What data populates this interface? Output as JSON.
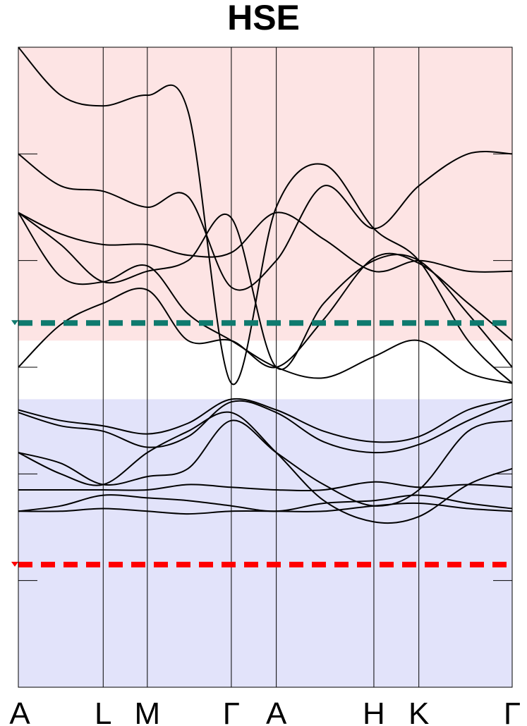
{
  "chart_data": {
    "type": "line",
    "title": "HSE",
    "xlabel": "",
    "ylabel": "",
    "grid": false,
    "x_ticks": [
      "A",
      "L",
      "M",
      "Γ",
      "A",
      "H",
      "K",
      "Γ"
    ],
    "x_tick_positions": [
      0,
      1.0,
      1.52,
      2.51,
      3.04,
      4.19,
      4.72,
      5.82
    ],
    "xlim": [
      0,
      5.82
    ],
    "ylim": [
      -6.0,
      6.0
    ],
    "y_ticks": [
      -4,
      -2,
      0,
      2,
      4
    ],
    "regions": [
      {
        "name": "conduction",
        "from": 0.5,
        "to": 6.0,
        "color": "#fde4e4"
      },
      {
        "name": "valence",
        "from": -6.0,
        "to": -0.6,
        "color": "#e2e3fa"
      }
    ],
    "reference_lines": [
      {
        "y": 0.83,
        "color": "#0f7a6e",
        "style": "dashed"
      },
      {
        "y": -3.7,
        "color": "#ff0000",
        "style": "dashed"
      }
    ],
    "series": [
      {
        "values": [
          [
            0,
            -0.8
          ],
          [
            0.5,
            -1.0
          ],
          [
            1.0,
            -1.1
          ],
          [
            1.52,
            -1.25
          ],
          [
            2.0,
            -1.05
          ],
          [
            2.51,
            -0.6
          ],
          [
            3.04,
            -0.8
          ],
          [
            3.6,
            -1.2
          ],
          [
            4.19,
            -1.4
          ],
          [
            4.72,
            -1.3
          ],
          [
            5.3,
            -0.8
          ],
          [
            5.82,
            -0.6
          ]
        ]
      },
      {
        "values": [
          [
            0,
            -0.85
          ],
          [
            0.5,
            -1.1
          ],
          [
            1.0,
            -1.2
          ],
          [
            1.52,
            -1.5
          ],
          [
            2.0,
            -1.3
          ],
          [
            2.51,
            -0.65
          ],
          [
            3.04,
            -0.85
          ],
          [
            3.6,
            -1.4
          ],
          [
            4.19,
            -1.6
          ],
          [
            4.72,
            -1.45
          ],
          [
            5.3,
            -1.0
          ],
          [
            5.82,
            -0.65
          ]
        ]
      },
      {
        "values": [
          [
            0,
            -1.6
          ],
          [
            0.5,
            -1.8
          ],
          [
            1.0,
            -2.2
          ],
          [
            1.52,
            -2.05
          ],
          [
            2.0,
            -1.9
          ],
          [
            2.51,
            -1.0
          ],
          [
            3.04,
            -1.6
          ],
          [
            3.6,
            -2.2
          ],
          [
            4.19,
            -2.6
          ],
          [
            4.72,
            -2.3
          ],
          [
            5.3,
            -1.2
          ],
          [
            5.82,
            -1.0
          ]
        ]
      },
      {
        "values": [
          [
            0,
            -1.6
          ],
          [
            0.5,
            -2.0
          ],
          [
            1.0,
            -2.2
          ],
          [
            1.52,
            -1.6
          ],
          [
            2.0,
            -1.2
          ],
          [
            2.51,
            -0.85
          ],
          [
            3.04,
            -1.6
          ],
          [
            3.6,
            -2.5
          ],
          [
            4.19,
            -2.9
          ],
          [
            4.72,
            -2.8
          ],
          [
            5.3,
            -2.2
          ],
          [
            5.82,
            -1.9
          ]
        ]
      },
      {
        "values": [
          [
            0,
            -2.3
          ],
          [
            0.5,
            -2.3
          ],
          [
            1.0,
            -2.3
          ],
          [
            1.52,
            -2.3
          ],
          [
            2.0,
            -2.2
          ],
          [
            2.51,
            -2.25
          ],
          [
            3.04,
            -2.3
          ],
          [
            3.6,
            -2.3
          ],
          [
            4.19,
            -2.15
          ],
          [
            4.72,
            -2.25
          ],
          [
            5.3,
            -2.2
          ],
          [
            5.82,
            -2.25
          ]
        ]
      },
      {
        "values": [
          [
            0,
            -2.7
          ],
          [
            0.5,
            -2.6
          ],
          [
            1.0,
            -2.4
          ],
          [
            1.52,
            -2.45
          ],
          [
            2.0,
            -2.5
          ],
          [
            2.51,
            -2.6
          ],
          [
            3.04,
            -2.7
          ],
          [
            3.6,
            -2.55
          ],
          [
            4.19,
            -2.5
          ],
          [
            4.72,
            -2.4
          ],
          [
            5.3,
            -2.55
          ],
          [
            5.82,
            -2.65
          ]
        ]
      },
      {
        "values": [
          [
            0,
            -2.7
          ],
          [
            0.5,
            -2.7
          ],
          [
            1.0,
            -2.65
          ],
          [
            1.52,
            -2.7
          ],
          [
            2.0,
            -2.75
          ],
          [
            2.51,
            -2.7
          ],
          [
            3.04,
            -2.7
          ],
          [
            3.6,
            -2.7
          ],
          [
            4.19,
            -2.6
          ],
          [
            4.72,
            -2.55
          ],
          [
            5.3,
            -2.65
          ],
          [
            5.82,
            -2.7
          ]
        ]
      },
      {
        "values": [
          [
            0,
            2.9
          ],
          [
            0.5,
            2.5
          ],
          [
            1.0,
            2.3
          ],
          [
            1.52,
            2.3
          ],
          [
            2.0,
            2.1
          ],
          [
            2.51,
            2.15
          ],
          [
            3.04,
            2.9
          ],
          [
            3.6,
            2.4
          ],
          [
            4.19,
            1.8
          ],
          [
            4.72,
            2.0
          ],
          [
            5.3,
            1.8
          ],
          [
            5.82,
            1.8
          ]
        ]
      },
      {
        "values": [
          [
            0,
            0.0
          ],
          [
            0.5,
            0.8
          ],
          [
            1.0,
            1.2
          ],
          [
            1.52,
            1.45
          ],
          [
            2.0,
            0.5
          ],
          [
            2.51,
            0.5
          ],
          [
            3.04,
            0.0
          ],
          [
            3.6,
            0.9
          ],
          [
            4.19,
            2.05
          ],
          [
            4.72,
            1.95
          ],
          [
            5.3,
            1.2
          ],
          [
            5.82,
            0.5
          ]
        ]
      },
      {
        "values": [
          [
            0,
            2.9
          ],
          [
            0.5,
            2.3
          ],
          [
            1.0,
            1.6
          ],
          [
            1.52,
            1.8
          ],
          [
            2.0,
            2.0
          ],
          [
            2.51,
            2.8
          ],
          [
            3.04,
            0.0
          ],
          [
            3.6,
            1.2
          ],
          [
            4.19,
            2.0
          ],
          [
            4.72,
            2.0
          ],
          [
            5.3,
            1.0
          ],
          [
            5.82,
            0.0
          ]
        ]
      },
      {
        "values": [
          [
            0,
            4.0
          ],
          [
            0.5,
            3.4
          ],
          [
            1.0,
            3.3
          ],
          [
            1.52,
            3.0
          ],
          [
            2.0,
            3.2
          ],
          [
            2.51,
            1.5
          ],
          [
            3.04,
            2.0
          ],
          [
            3.6,
            3.4
          ],
          [
            4.19,
            2.6
          ],
          [
            4.72,
            3.4
          ],
          [
            5.3,
            4.0
          ],
          [
            5.82,
            4.0
          ]
        ]
      },
      {
        "values": [
          [
            0,
            6.0
          ],
          [
            0.5,
            5.1
          ],
          [
            1.0,
            4.9
          ],
          [
            1.52,
            5.1
          ],
          [
            2.0,
            4.8
          ],
          [
            2.51,
            -0.3
          ],
          [
            3.04,
            3.0
          ],
          [
            3.6,
            3.8
          ],
          [
            4.19,
            2.6
          ],
          [
            4.72,
            2.0
          ],
          [
            5.3,
            0.5
          ],
          [
            5.82,
            -0.3
          ]
        ]
      },
      {
        "values": [
          [
            0,
            2.9
          ],
          [
            0.5,
            1.7
          ],
          [
            1.0,
            1.6
          ],
          [
            1.52,
            1.9
          ],
          [
            2.0,
            1.0
          ],
          [
            2.51,
            0.5
          ],
          [
            3.04,
            0.0
          ],
          [
            3.6,
            -0.2
          ],
          [
            4.19,
            0.2
          ],
          [
            4.72,
            0.5
          ],
          [
            5.3,
            -0.1
          ],
          [
            5.82,
            -0.3
          ]
        ]
      }
    ]
  }
}
